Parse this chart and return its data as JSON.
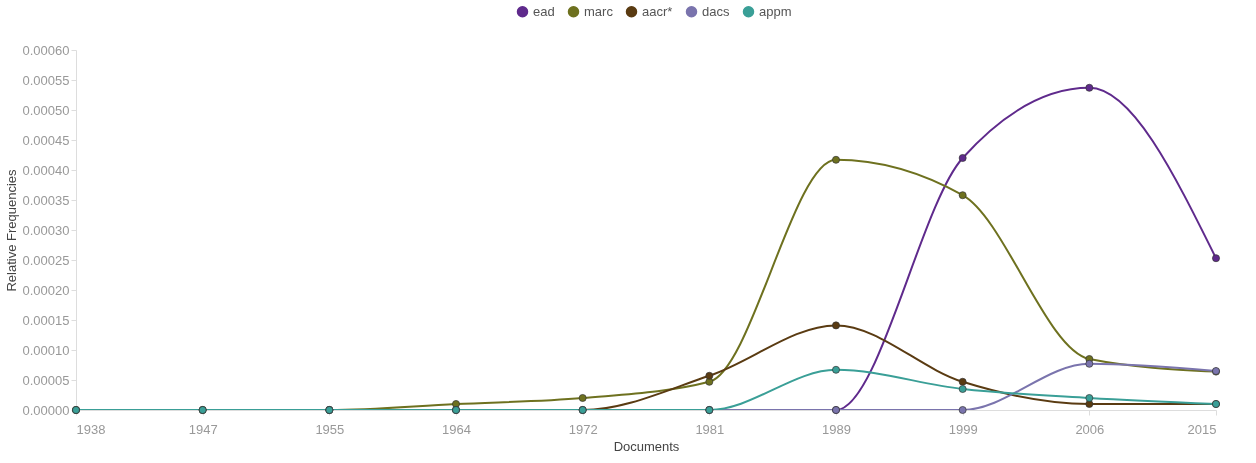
{
  "chart_data": {
    "type": "line",
    "xlabel": "Documents",
    "ylabel": "Relative Frequencies",
    "categories": [
      "1938",
      "1947",
      "1955",
      "1964",
      "1972",
      "1981",
      "1989",
      "1999",
      "2006",
      "2015"
    ],
    "series": [
      {
        "name": "ead",
        "color": "#5f2a8c",
        "values": [
          null,
          null,
          null,
          null,
          null,
          0,
          0,
          0.00042,
          0.000537,
          0.000253
        ]
      },
      {
        "name": "marc",
        "color": "#6e711f",
        "values": [
          0,
          0,
          0,
          1e-05,
          2e-05,
          4.7e-05,
          0.000417,
          0.000358,
          8.5e-05,
          6.4e-05
        ]
      },
      {
        "name": "aacr*",
        "color": "#5a3b12",
        "values": [
          0,
          0,
          0,
          0,
          0,
          5.7e-05,
          0.000141,
          4.7e-05,
          1e-05,
          1e-05
        ]
      },
      {
        "name": "dacs",
        "color": "#7a74ad",
        "values": [
          null,
          null,
          0,
          0,
          0,
          0,
          0,
          0,
          7.7e-05,
          6.5e-05
        ]
      },
      {
        "name": "appm",
        "color": "#3a9f97",
        "values": [
          0,
          0,
          0,
          0,
          0,
          0,
          6.7e-05,
          3.5e-05,
          2e-05,
          1e-05
        ]
      }
    ],
    "ylim": [
      0,
      0.0006
    ],
    "yticks": [
      {
        "value": 0,
        "label": "0.00000"
      },
      {
        "value": 5e-05,
        "label": "0.00005"
      },
      {
        "value": 0.0001,
        "label": "0.00010"
      },
      {
        "value": 0.00015,
        "label": "0.00015"
      },
      {
        "value": 0.0002,
        "label": "0.00020"
      },
      {
        "value": 0.00025,
        "label": "0.00025"
      },
      {
        "value": 0.0003,
        "label": "0.00030"
      },
      {
        "value": 0.00035,
        "label": "0.00035"
      },
      {
        "value": 0.0004,
        "label": "0.00040"
      },
      {
        "value": 0.00045,
        "label": "0.00045"
      },
      {
        "value": 0.0005,
        "label": "0.00050"
      },
      {
        "value": 0.00055,
        "label": "0.00055"
      },
      {
        "value": 0.0006,
        "label": "0.00060"
      }
    ],
    "grid": false,
    "legend": "top",
    "marker": "circle",
    "line_style": "solid"
  }
}
